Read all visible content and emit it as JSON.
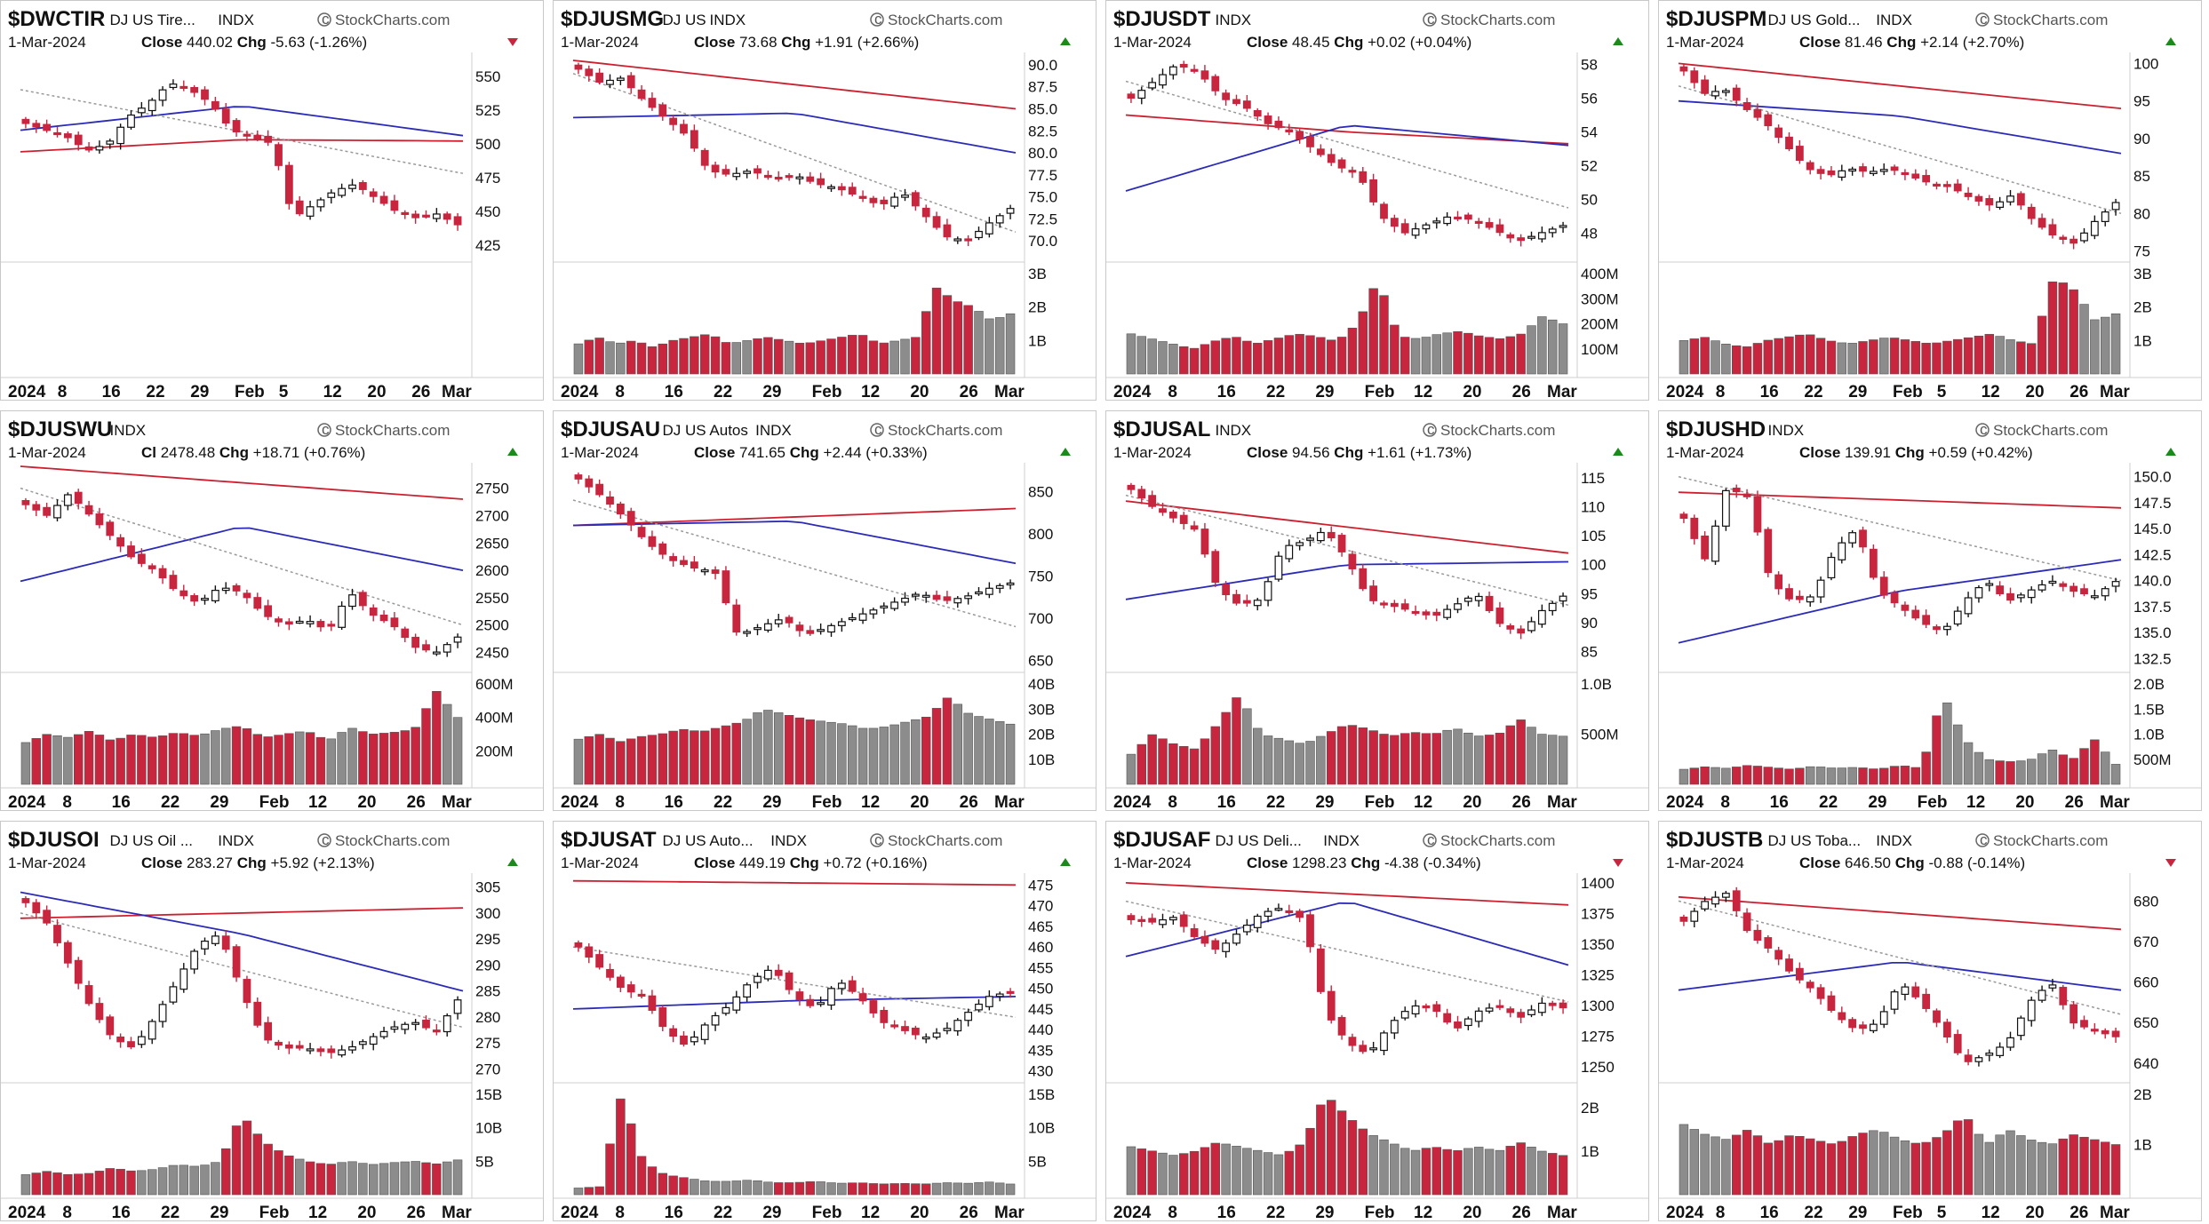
{
  "colors": {
    "up": "#ffffff",
    "down": "#c8253f",
    "ma_fast": "#999999",
    "ma_mid": "#2b2bb8",
    "ma_slow": "#cc2030",
    "vol_up": "#8c8c8c",
    "vol_down": "#c8253f",
    "arrow_up": "#1a8a1a",
    "arrow_down": "#c8253f"
  },
  "brand": "StockCharts.com",
  "brand_icon": "copyright-icon",
  "panels": [
    {
      "ticker": "$DWCTIR",
      "name": "DJ US Tire...",
      "exchange": "INDX",
      "date": "1-Mar-2024",
      "close_label": "Close",
      "close": "440.02",
      "chg_label": "Chg",
      "chg": "-5.63 (-1.26%)",
      "direction": "down",
      "price_ticks": [
        "550",
        "525",
        "500",
        "475",
        "450",
        "425"
      ],
      "volume_ticks": [],
      "x_labels": [
        "2024",
        "8",
        "16",
        "22",
        "29",
        "Feb",
        "5",
        "12",
        "20",
        "26",
        "Mar"
      ]
    },
    {
      "ticker": "$DJUSMG",
      "name": "DJ US",
      "exchange": "INDX",
      "date": "1-Mar-2024",
      "close_label": "Close",
      "close": "73.68",
      "chg_label": "Chg",
      "chg": "+1.91 (+2.66%)",
      "direction": "up",
      "price_ticks": [
        "90.0",
        "87.5",
        "85.0",
        "82.5",
        "80.0",
        "77.5",
        "75.0",
        "72.5",
        "70.0"
      ],
      "volume_ticks": [
        "3B",
        "2B",
        "1B"
      ],
      "x_labels": [
        "2024",
        "8",
        "16",
        "22",
        "29",
        "Feb",
        "12",
        "20",
        "26",
        "Mar"
      ]
    },
    {
      "ticker": "$DJUSDT",
      "name": "",
      "exchange": "INDX",
      "date": "1-Mar-2024",
      "close_label": "Close",
      "close": "48.45",
      "chg_label": "Chg",
      "chg": "+0.02 (+0.04%)",
      "direction": "up",
      "price_ticks": [
        "58",
        "56",
        "54",
        "52",
        "50",
        "48"
      ],
      "volume_ticks": [
        "400M",
        "300M",
        "200M",
        "100M"
      ],
      "x_labels": [
        "2024",
        "8",
        "16",
        "22",
        "29",
        "Feb",
        "12",
        "20",
        "26",
        "Mar"
      ]
    },
    {
      "ticker": "$DJUSPM",
      "name": "DJ US Gold...",
      "exchange": "INDX",
      "date": "1-Mar-2024",
      "close_label": "Close",
      "close": "81.46",
      "chg_label": "Chg",
      "chg": "+2.14 (+2.70%)",
      "direction": "up",
      "price_ticks": [
        "100",
        "95",
        "90",
        "85",
        "80",
        "75"
      ],
      "volume_ticks": [
        "3B",
        "2B",
        "1B"
      ],
      "x_labels": [
        "2024",
        "8",
        "16",
        "22",
        "29",
        "Feb",
        "5",
        "12",
        "20",
        "26",
        "Mar"
      ]
    },
    {
      "ticker": "$DJUSWU",
      "name": "",
      "exchange": "INDX",
      "date": "1-Mar-2024",
      "close_label": "Cl",
      "close": "2478.48",
      "chg_label": "Chg",
      "chg": "+18.71 (+0.76%)",
      "direction": "up",
      "price_ticks": [
        "2750",
        "2700",
        "2650",
        "2600",
        "2550",
        "2500",
        "2450"
      ],
      "volume_ticks": [
        "600M",
        "400M",
        "200M"
      ],
      "x_labels": [
        "2024",
        "8",
        "16",
        "22",
        "29",
        "Feb",
        "12",
        "20",
        "26",
        "Mar"
      ]
    },
    {
      "ticker": "$DJUSAU",
      "name": "DJ US Autos",
      "exchange": "INDX",
      "date": "1-Mar-2024",
      "close_label": "Close",
      "close": "741.65",
      "chg_label": "Chg",
      "chg": "+2.44 (+0.33%)",
      "direction": "up",
      "price_ticks": [
        "850",
        "800",
        "750",
        "700",
        "650"
      ],
      "volume_ticks": [
        "40B",
        "30B",
        "20B",
        "10B"
      ],
      "x_labels": [
        "2024",
        "8",
        "16",
        "22",
        "29",
        "Feb",
        "12",
        "20",
        "26",
        "Mar"
      ]
    },
    {
      "ticker": "$DJUSAL",
      "name": "",
      "exchange": "INDX",
      "date": "1-Mar-2024",
      "close_label": "Close",
      "close": "94.56",
      "chg_label": "Chg",
      "chg": "+1.61 (+1.73%)",
      "direction": "up",
      "price_ticks": [
        "115",
        "110",
        "105",
        "100",
        "95",
        "90",
        "85"
      ],
      "volume_ticks": [
        "1.0B",
        "500M"
      ],
      "x_labels": [
        "2024",
        "8",
        "16",
        "22",
        "29",
        "Feb",
        "12",
        "20",
        "26",
        "Mar"
      ]
    },
    {
      "ticker": "$DJUSHD",
      "name": "",
      "exchange": "INDX",
      "date": "1-Mar-2024",
      "close_label": "Close",
      "close": "139.91",
      "chg_label": "Chg",
      "chg": "+0.59 (+0.42%)",
      "direction": "up",
      "price_ticks": [
        "150.0",
        "147.5",
        "145.0",
        "142.5",
        "140.0",
        "137.5",
        "135.0",
        "132.5"
      ],
      "volume_ticks": [
        "2.0B",
        "1.5B",
        "1.0B",
        "500M"
      ],
      "x_labels": [
        "2024",
        "8",
        "16",
        "22",
        "29",
        "Feb",
        "12",
        "20",
        "26",
        "Mar"
      ]
    },
    {
      "ticker": "$DJUSOI",
      "name": "DJ US Oil ...",
      "exchange": "INDX",
      "date": "1-Mar-2024",
      "close_label": "Close",
      "close": "283.27",
      "chg_label": "Chg",
      "chg": "+5.92 (+2.13%)",
      "direction": "up",
      "price_ticks": [
        "305",
        "300",
        "295",
        "290",
        "285",
        "280",
        "275",
        "270"
      ],
      "volume_ticks": [
        "15B",
        "10B",
        "5B"
      ],
      "x_labels": [
        "2024",
        "8",
        "16",
        "22",
        "29",
        "Feb",
        "12",
        "20",
        "26",
        "Mar"
      ]
    },
    {
      "ticker": "$DJUSAT",
      "name": "DJ US Auto...",
      "exchange": "INDX",
      "date": "1-Mar-2024",
      "close_label": "Close",
      "close": "449.19",
      "chg_label": "Chg",
      "chg": "+0.72 (+0.16%)",
      "direction": "up",
      "price_ticks": [
        "475",
        "470",
        "465",
        "460",
        "455",
        "450",
        "445",
        "440",
        "435",
        "430"
      ],
      "volume_ticks": [
        "15B",
        "10B",
        "5B"
      ],
      "x_labels": [
        "2024",
        "8",
        "16",
        "22",
        "29",
        "Feb",
        "12",
        "20",
        "26",
        "Mar"
      ]
    },
    {
      "ticker": "$DJUSAF",
      "name": "DJ US Deli...",
      "exchange": "INDX",
      "date": "1-Mar-2024",
      "close_label": "Close",
      "close": "1298.23",
      "chg_label": "Chg",
      "chg": "-4.38 (-0.34%)",
      "direction": "down",
      "price_ticks": [
        "1400",
        "1375",
        "1350",
        "1325",
        "1300",
        "1275",
        "1250"
      ],
      "volume_ticks": [
        "2B",
        "1B"
      ],
      "x_labels": [
        "2024",
        "8",
        "16",
        "22",
        "29",
        "Feb",
        "12",
        "20",
        "26",
        "Mar"
      ]
    },
    {
      "ticker": "$DJUSTB",
      "name": "DJ US Toba...",
      "exchange": "INDX",
      "date": "1-Mar-2024",
      "close_label": "Close",
      "close": "646.50",
      "chg_label": "Chg",
      "chg": "-0.88 (-0.14%)",
      "direction": "down",
      "price_ticks": [
        "680",
        "670",
        "660",
        "650",
        "640"
      ],
      "volume_ticks": [
        "2B",
        "1B"
      ],
      "x_labels": [
        "2024",
        "8",
        "16",
        "22",
        "29",
        "Feb",
        "5",
        "12",
        "20",
        "26",
        "Mar"
      ]
    }
  ],
  "chart_data": [
    {
      "type": "candlestick",
      "title": "$DWCTIR",
      "ylim": [
        415,
        565
      ],
      "ma": {
        "ma_fast": [
          540,
          478
        ],
        "ma_mid": [
          510,
          528,
          506
        ],
        "ma_slow": [
          494,
          503,
          502
        ]
      },
      "close_path": [
        515,
        510,
        505,
        495,
        500,
        520,
        530,
        545,
        540,
        530,
        510,
        505,
        500,
        445,
        455,
        465,
        470,
        460,
        450,
        445,
        448,
        440
      ],
      "volume": []
    },
    {
      "type": "candlestick",
      "title": "$DJUSMG",
      "ylim": [
        68,
        91
      ],
      "ma": {
        "ma_fast": [
          89,
          71
        ],
        "ma_mid": [
          84,
          84.5,
          80
        ],
        "ma_slow": [
          90.5,
          85
        ]
      },
      "close_path": [
        89.5,
        88,
        88.5,
        86,
        84,
        82,
        78,
        77.5,
        78,
        77,
        77.5,
        76.5,
        76,
        75,
        74,
        75.5,
        73,
        70.5,
        70,
        72,
        73.68
      ],
      "volume": [
        0.9,
        1.1,
        0.9,
        1.0,
        0.8,
        1.0,
        1.1,
        1.2,
        0.9,
        1.0,
        1.1,
        1.0,
        0.9,
        1.0,
        1.1,
        1.2,
        0.9,
        1.0,
        1.1,
        2.6,
        2.2,
        2.0,
        1.6,
        1.8
      ]
    },
    {
      "type": "candlestick",
      "title": "$DJUSDT",
      "ylim": [
        46.5,
        58.5
      ],
      "ma": {
        "ma_fast": [
          57,
          49.5
        ],
        "ma_mid": [
          50.5,
          54.4,
          53.2
        ],
        "ma_slow": [
          55,
          54,
          53.3
        ]
      },
      "close_path": [
        56,
        57,
        58,
        57.5,
        56,
        55.5,
        54.5,
        54,
        53,
        52,
        51.5,
        49,
        48,
        48.5,
        49,
        48.8,
        48.2,
        47.5,
        48,
        48.45
      ],
      "volume": [
        160,
        140,
        120,
        100,
        130,
        150,
        120,
        140,
        160,
        150,
        130,
        200,
        380,
        150,
        140,
        160,
        170,
        150,
        140,
        160,
        230,
        200
      ]
    },
    {
      "type": "candlestick",
      "title": "$DJUSPM",
      "ylim": [
        74,
        101
      ],
      "ma": {
        "ma_fast": [
          97,
          80
        ],
        "ma_mid": [
          95,
          93,
          88
        ],
        "ma_slow": [
          100,
          94
        ]
      },
      "close_path": [
        99,
        96,
        96.5,
        94,
        92,
        89,
        86,
        85,
        86,
        85.5,
        86,
        85,
        84,
        83.5,
        82,
        81,
        82.5,
        79,
        77,
        76,
        79,
        81.46
      ],
      "volume": [
        1.0,
        1.1,
        0.9,
        0.8,
        1.0,
        1.1,
        1.2,
        1.0,
        0.9,
        1.0,
        1.1,
        1.0,
        0.9,
        1.0,
        1.1,
        1.2,
        1.0,
        0.9,
        2.9,
        2.5,
        1.6,
        1.8
      ]
    },
    {
      "type": "candlestick",
      "title": "$DJUSWU",
      "ylim": [
        2420,
        2790
      ],
      "ma": {
        "ma_fast": [
          2750,
          2500
        ],
        "ma_mid": [
          2580,
          2680,
          2600
        ],
        "ma_slow": [
          2790,
          2730
        ]
      },
      "close_path": [
        2720,
        2700,
        2740,
        2700,
        2660,
        2620,
        2600,
        2560,
        2540,
        2570,
        2560,
        2520,
        2500,
        2510,
        2490,
        2560,
        2520,
        2500,
        2460,
        2450,
        2478
      ],
      "volume": [
        250,
        300,
        280,
        320,
        260,
        300,
        280,
        310,
        290,
        330,
        350,
        280,
        300,
        320,
        260,
        340,
        300,
        310,
        330,
        560,
        400
      ]
    },
    {
      "type": "candlestick",
      "title": "$DJUSAU",
      "ylim": [
        640,
        880
      ],
      "ma": {
        "ma_fast": [
          840,
          690
        ],
        "ma_mid": [
          810,
          815,
          765
        ],
        "ma_slow": [
          810,
          830
        ]
      },
      "close_path": [
        865,
        845,
        820,
        790,
        770,
        760,
        755,
        680,
        690,
        700,
        680,
        690,
        700,
        710,
        720,
        730,
        720,
        725,
        735,
        741.65
      ],
      "volume": [
        18,
        20,
        17,
        19,
        20,
        22,
        21,
        23,
        25,
        30,
        28,
        26,
        25,
        24,
        22,
        23,
        25,
        27,
        35,
        28,
        26,
        24
      ]
    },
    {
      "type": "candlestick",
      "title": "$DJUSAL",
      "ylim": [
        82,
        117
      ],
      "ma": {
        "ma_fast": [
          112,
          93
        ],
        "ma_mid": [
          94,
          100,
          100.5
        ],
        "ma_slow": [
          111,
          102
        ]
      },
      "close_path": [
        113,
        110,
        108,
        106,
        96,
        93,
        94,
        103,
        104,
        106,
        101,
        94,
        93,
        92,
        91,
        93,
        95,
        90,
        88,
        92,
        94.56
      ],
      "volume": [
        300,
        500,
        400,
        350,
        600,
        900,
        500,
        450,
        400,
        500,
        600,
        550,
        480,
        520,
        500,
        560,
        480,
        500,
        650,
        500,
        480
      ]
    },
    {
      "type": "candlestick",
      "title": "$DJUSHD",
      "ylim": [
        131.5,
        151
      ],
      "ma": {
        "ma_fast": [
          150,
          140
        ],
        "ma_mid": [
          134,
          139,
          142
        ],
        "ma_slow": [
          148.5,
          147
        ]
      },
      "close_path": [
        146,
        142,
        149,
        148,
        140,
        138,
        138.5,
        143,
        145,
        139,
        137.5,
        136,
        135,
        138,
        140,
        138,
        139,
        140,
        139,
        138.5,
        139.91
      ],
      "volume": [
        300,
        350,
        320,
        380,
        340,
        300,
        360,
        320,
        340,
        300,
        380,
        320,
        1800,
        900,
        500,
        450,
        480,
        700,
        500,
        900,
        400
      ]
    },
    {
      "type": "candlestick",
      "title": "$DJUSOI",
      "ylim": [
        268,
        307
      ],
      "ma": {
        "ma_fast": [
          300,
          278
        ],
        "ma_mid": [
          304,
          296,
          285
        ],
        "ma_slow": [
          299,
          300,
          301
        ]
      },
      "close_path": [
        302,
        298,
        290,
        282,
        276,
        274,
        280,
        287,
        294,
        296,
        285,
        276,
        274,
        274,
        273,
        274,
        276,
        278,
        279,
        277,
        283.27
      ],
      "volume": [
        3,
        3.5,
        3,
        3.2,
        4,
        3.5,
        3.8,
        4.5,
        4.2,
        5,
        12,
        8,
        6,
        5,
        4.5,
        5,
        4.5,
        4.8,
        5,
        4.6,
        5.2
      ]
    },
    {
      "type": "candlestick",
      "title": "$DJUSAT",
      "ylim": [
        428,
        477
      ],
      "ma": {
        "ma_fast": [
          460,
          443
        ],
        "ma_mid": [
          445,
          447,
          448
        ],
        "ma_slow": [
          476,
          475
        ]
      },
      "close_path": [
        460,
        455,
        450,
        448,
        440,
        436,
        442,
        446,
        452,
        455,
        448,
        445,
        452,
        448,
        442,
        440,
        438,
        440,
        444,
        448,
        449.19
      ],
      "volume": [
        1,
        1.2,
        15,
        5,
        3,
        2.5,
        2,
        2,
        2.2,
        1.8,
        1.8,
        2,
        1.7,
        1.8,
        1.6,
        1.7,
        1.6,
        1.8,
        1.7,
        1.9,
        1.6
      ]
    },
    {
      "type": "candlestick",
      "title": "$DJUSAF",
      "ylim": [
        1240,
        1405
      ],
      "ma": {
        "ma_fast": [
          1385,
          1303
        ],
        "ma_mid": [
          1340,
          1385,
          1333
        ],
        "ma_slow": [
          1400,
          1382
        ]
      },
      "close_path": [
        1370,
        1368,
        1372,
        1355,
        1345,
        1360,
        1375,
        1380,
        1370,
        1295,
        1270,
        1260,
        1285,
        1300,
        1298,
        1280,
        1295,
        1300,
        1290,
        1302,
        1298.23
      ],
      "volume": [
        1.1,
        1.0,
        0.9,
        1.0,
        1.2,
        1.1,
        1.0,
        0.9,
        1.2,
        2.3,
        1.8,
        1.4,
        1.2,
        1.0,
        1.1,
        1.0,
        1.1,
        1.0,
        1.2,
        1.0,
        0.9
      ]
    },
    {
      "type": "candlestick",
      "title": "$DJUSTB",
      "ylim": [
        636,
        686
      ],
      "ma": {
        "ma_fast": [
          680,
          652
        ],
        "ma_mid": [
          658,
          665,
          658
        ],
        "ma_slow": [
          681,
          673
        ]
      },
      "close_path": [
        675,
        680,
        682,
        672,
        668,
        662,
        658,
        652,
        648,
        650,
        660,
        655,
        648,
        640,
        642,
        645,
        655,
        660,
        650,
        648,
        646.5
      ],
      "volume": [
        1.4,
        1.2,
        1.1,
        1.3,
        1.0,
        1.2,
        1.1,
        1.0,
        1.2,
        1.3,
        1.1,
        1.0,
        1.2,
        1.6,
        1.0,
        1.3,
        1.1,
        1.0,
        1.2,
        1.1,
        1.0
      ]
    }
  ]
}
